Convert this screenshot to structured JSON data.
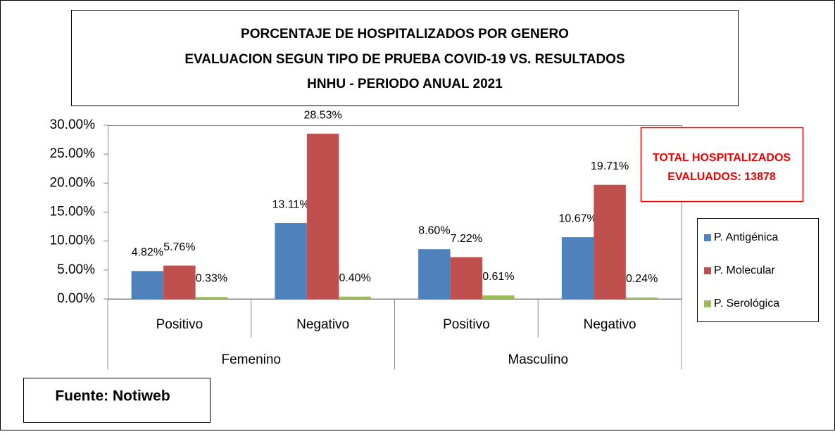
{
  "chart_data": {
    "type": "bar",
    "title": [
      "PORCENTAJE DE HOSPITALIZADOS POR GENERO",
      "EVALUACION SEGUN TIPO DE  PRUEBA COVID-19 VS. RESULTADOS",
      "HNHU - PERIODO ANUAL 2021"
    ],
    "categories": [
      "Positivo",
      "Negativo",
      "Positivo",
      "Negativo"
    ],
    "groups": [
      "Femenino",
      "Masculino"
    ],
    "series": [
      {
        "name": "P. Antigénica",
        "color": "#4f81bd",
        "values": [
          4.82,
          13.11,
          8.6,
          10.67
        ],
        "value_labels": [
          "4.82%",
          "13.11%",
          "8.60%",
          "10.67%"
        ]
      },
      {
        "name": "P. Molecular",
        "color": "#c0504d",
        "values": [
          5.76,
          28.53,
          7.22,
          19.71
        ],
        "value_labels": [
          "5.76%",
          "28.53%",
          "7.22%",
          "19.71%"
        ]
      },
      {
        "name": "P. Serológica",
        "color": "#9bbb59",
        "values": [
          0.33,
          0.4,
          0.61,
          0.24
        ],
        "value_labels": [
          "0.33%",
          "0.40%",
          "0.61%",
          "0.24%"
        ]
      }
    ],
    "ylim": [
      0,
      30
    ],
    "yticks": [
      {
        "value": 0,
        "label": "0.00%"
      },
      {
        "value": 5,
        "label": "5.00%"
      },
      {
        "value": 10,
        "label": "10.00%"
      },
      {
        "value": 15,
        "label": "15.00%"
      },
      {
        "value": 20,
        "label": "20.00%"
      },
      {
        "value": 25,
        "label": "25.00%"
      },
      {
        "value": 30,
        "label": "30.00%"
      }
    ],
    "annotation": [
      "TOTAL HOSPITALIZADOS",
      "EVALUADOS: 13878"
    ],
    "source": "Fuente: Notiweb",
    "legend": "right"
  }
}
